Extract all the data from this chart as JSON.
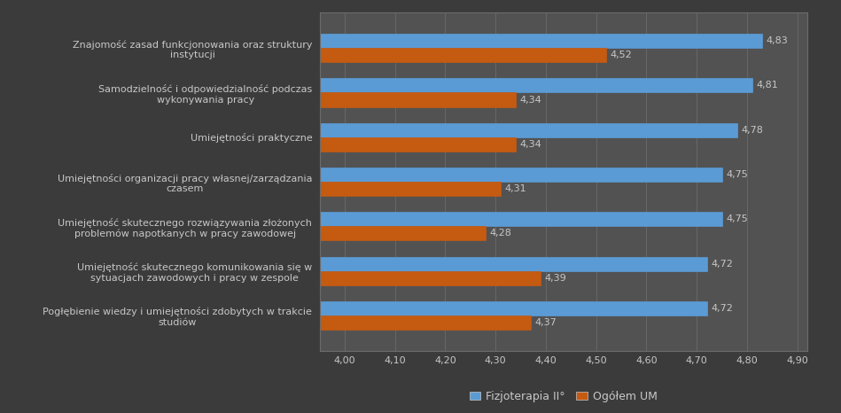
{
  "categories": [
    "Pogłębienie wiedzy i umiejętności zdobytych w trakcie\nstudiow",
    "Umiejętność skutecznego komunikowania się w\nsytuacjach zawodowych i pracy w zespole",
    "Umiejętność skutecznego rozwiązywania złożonych\nproblemów napotkanych w pracy zawodowej",
    "Umiejętności organizacji pracy własnej/zarządzania\nczasem",
    "Umiejętności praktyczne",
    "Samodzielność i odpowiedzialność podczas\nwykonywania pracy",
    "Znajomość zasad funkcjonowania oraz struktury\ninstytucji"
  ],
  "fizjoterapia_values": [
    4.72,
    4.72,
    4.75,
    4.75,
    4.78,
    4.81,
    4.83
  ],
  "ogolem_values": [
    4.37,
    4.39,
    4.28,
    4.31,
    4.34,
    4.34,
    4.52
  ],
  "fizjoterapia_color": "#5b9bd5",
  "ogolem_color": "#c55a11",
  "fizjoterapia_edge": "#5b9bd5",
  "ogolem_edge": "#c55a11",
  "background_color": "#3b3b3b",
  "plot_bg_color": "#525252",
  "grid_color": "#6b6b6b",
  "text_color": "#c8c8c8",
  "label_color": "#c8c8c8",
  "bar_height": 0.32,
  "xlim_left": 3.95,
  "xlim_right": 4.92,
  "xticks": [
    4.0,
    4.1,
    4.2,
    4.3,
    4.4,
    4.5,
    4.6,
    4.7,
    4.8,
    4.9
  ],
  "legend_labels": [
    "Fizjoterapia II°",
    "Ogółem UM"
  ],
  "value_fontsize": 8,
  "label_fontsize": 8,
  "tick_fontsize": 8
}
